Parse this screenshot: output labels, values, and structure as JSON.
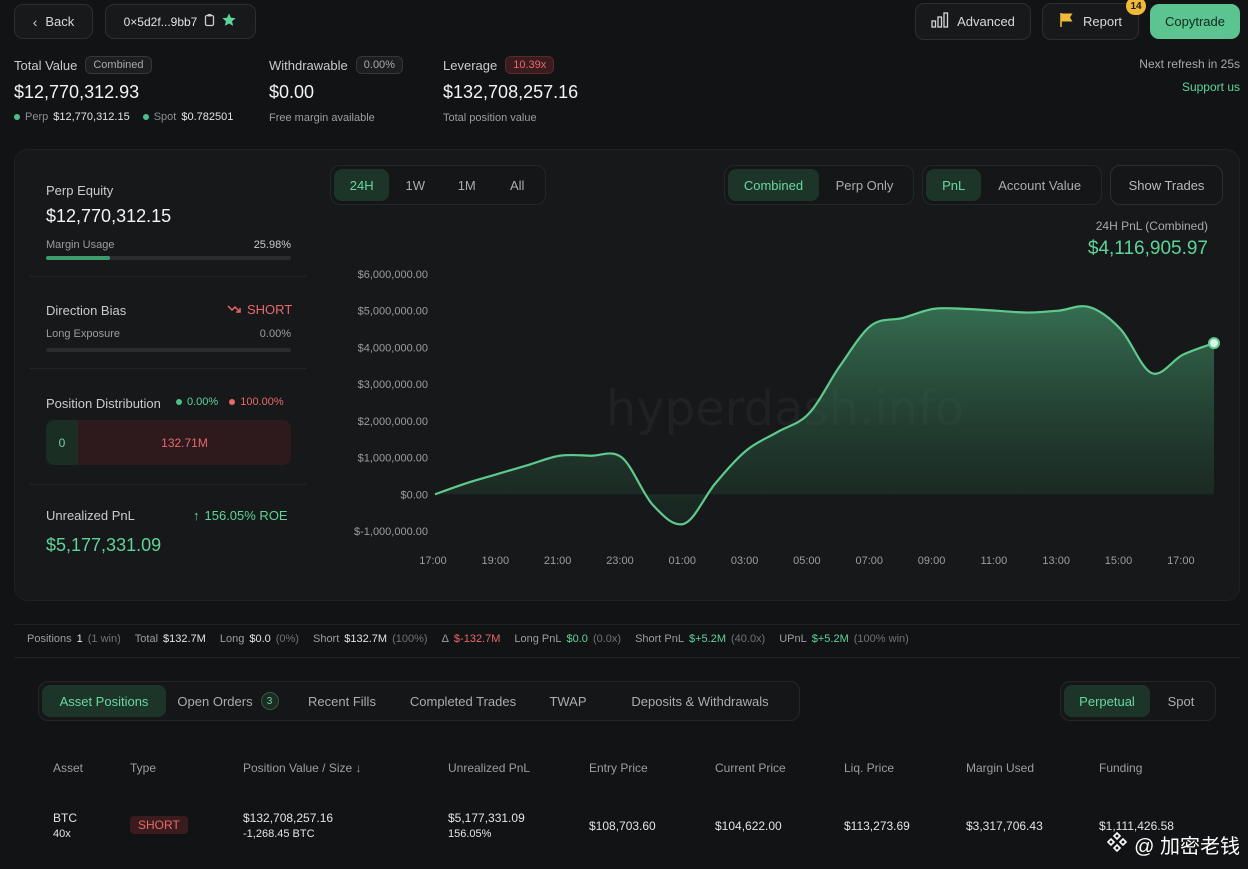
{
  "header": {
    "back_label": "Back",
    "address": "0×5d2f...9bb7",
    "advanced_label": "Advanced",
    "report_label": "Report",
    "report_badge": "14",
    "copytrade_label": "Copytrade"
  },
  "summary": {
    "total_value_label": "Total Value",
    "total_value_pill": "Combined",
    "total_value": "$12,770,312.93",
    "perp_label": "Perp",
    "perp_value": "$12,770,312.15",
    "spot_label": "Spot",
    "spot_value": "$0.782501",
    "withdrawable_label": "Withdrawable",
    "withdrawable_pill": "0.00%",
    "withdrawable_value": "$0.00",
    "withdrawable_sub": "Free margin available",
    "leverage_label": "Leverage",
    "leverage_pill": "10.39x",
    "leverage_value": "$132,708,257.16",
    "leverage_sub": "Total position value",
    "refresh_text": "Next refresh in 25s",
    "support_text": "Support us"
  },
  "left": {
    "perp_equity_label": "Perp Equity",
    "perp_equity_value": "$12,770,312.15",
    "margin_usage_label": "Margin Usage",
    "margin_usage_value": "25.98%",
    "margin_usage_fraction": 0.2598,
    "direction_label": "Direction Bias",
    "direction_value": "SHORT",
    "long_exposure_label": "Long Exposure",
    "long_exposure_value": "0.00%",
    "distribution_label": "Position Distribution",
    "dist_long_pct": "0.00%",
    "dist_short_pct": "100.00%",
    "dist_long_value": "0",
    "dist_short_value": "132.71M",
    "upnl_label": "Unrealized PnL",
    "upnl_roe": "156.05% ROE",
    "upnl_value": "$5,177,331.09"
  },
  "chart_controls": {
    "ranges": [
      "24H",
      "1W",
      "1M",
      "All"
    ],
    "active_range": "24H",
    "modes": [
      "Combined",
      "Perp Only"
    ],
    "metrics": [
      "PnL",
      "Account Value"
    ],
    "show_trades": "Show Trades",
    "pnl_title": "24H PnL (Combined)",
    "pnl_value": "$4,116,905.97",
    "watermark": "hyperdash.info"
  },
  "chart_data": {
    "type": "area",
    "title": "24H PnL (Combined)",
    "x": [
      "17:00",
      "18:00",
      "19:00",
      "20:00",
      "21:00",
      "22:00",
      "23:00",
      "00:00",
      "01:00",
      "02:00",
      "03:00",
      "04:00",
      "05:00",
      "06:00",
      "07:00",
      "08:00",
      "09:00",
      "10:00",
      "11:00",
      "12:00",
      "13:00",
      "14:00",
      "15:00",
      "16:00",
      "17:00",
      "17:30"
    ],
    "values": [
      0,
      300000,
      550000,
      800000,
      1050000,
      1050000,
      1000000,
      -300000,
      -800000,
      300000,
      1200000,
      1700000,
      2200000,
      3500000,
      4600000,
      4800000,
      5050000,
      5050000,
      5000000,
      4950000,
      5000000,
      5100000,
      4500000,
      3300000,
      3800000,
      4116905.97
    ],
    "x_tick_labels": [
      "17:00",
      "19:00",
      "21:00",
      "23:00",
      "01:00",
      "03:00",
      "05:00",
      "07:00",
      "09:00",
      "11:00",
      "13:00",
      "15:00",
      "17:00"
    ],
    "y_tick_labels": [
      "$6,000,000.00",
      "$5,000,000.00",
      "$4,000,000.00",
      "$3,000,000.00",
      "$2,000,000.00",
      "$1,000,000.00",
      "$0.00",
      "$-1,000,000.00"
    ],
    "y_ticks": [
      6000000,
      5000000,
      4000000,
      3000000,
      2000000,
      1000000,
      0,
      -1000000
    ],
    "ylim": [
      -1000000,
      6000000
    ],
    "color": "#5fc98e"
  },
  "stats_bar": {
    "items": [
      {
        "label": "Positions",
        "value": "1",
        "extra": "(1 win)",
        "color": "#e2e4e6"
      },
      {
        "label": "Total",
        "value": "$132.7M",
        "extra": "",
        "color": "#e2e4e6"
      },
      {
        "label": "Long",
        "value": "$0.0",
        "extra": "(0%)",
        "color": "#e2e4e6"
      },
      {
        "label": "Short",
        "value": "$132.7M",
        "extra": "(100%)",
        "color": "#e2e4e6"
      },
      {
        "label": "Δ",
        "value": "$-132.7M",
        "extra": "",
        "color": "#e8686b"
      },
      {
        "label": "Long PnL",
        "value": "$0.0",
        "extra": "(0.0x)",
        "color": "#5fd49a"
      },
      {
        "label": "Short PnL",
        "value": "$+5.2M",
        "extra": "(40.0x)",
        "color": "#5fd49a"
      },
      {
        "label": "UPnL",
        "value": "$+5.2M",
        "extra": "(100% win)",
        "color": "#5fd49a"
      }
    ]
  },
  "tabs": {
    "items": [
      "Asset Positions",
      "Open Orders",
      "Recent Fills",
      "Completed Trades",
      "TWAP",
      "Deposits & Withdrawals"
    ],
    "open_orders_badge": "3",
    "market": [
      "Perpetual",
      "Spot"
    ]
  },
  "table": {
    "headers": [
      "Asset",
      "Type",
      "Position Value / Size",
      "Unrealized PnL",
      "Entry Price",
      "Current Price",
      "Liq. Price",
      "Margin Used",
      "Funding"
    ],
    "row": {
      "asset": "BTC",
      "leverage": "40x",
      "type": "SHORT",
      "position_value": "$132,708,257.16",
      "position_size": "-1,268.45 BTC",
      "upnl": "$5,177,331.09",
      "upnl_pct": "156.05%",
      "entry": "$108,703.60",
      "current": "$104,622.00",
      "liq": "$113,273.69",
      "margin": "$3,317,706.43",
      "funding": "$1,111,426.58"
    }
  },
  "corner_watermark": "@ 加密老钱"
}
